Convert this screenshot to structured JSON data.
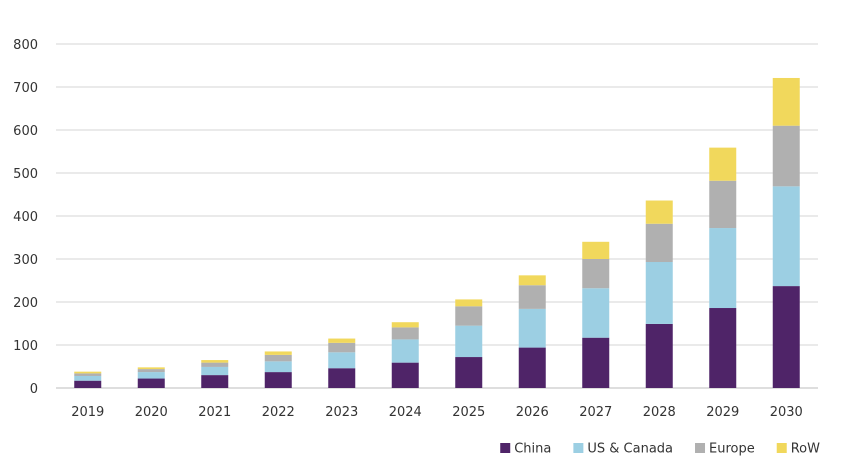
{
  "chart_data": {
    "type": "bar",
    "stacked": true,
    "title": "",
    "xlabel": "",
    "ylabel": "",
    "ylim": [
      0,
      800
    ],
    "yticks": [
      0,
      100,
      200,
      300,
      400,
      500,
      600,
      700,
      800
    ],
    "grid": "horizontal",
    "legend_position": "bottom-right",
    "categories": [
      "2019",
      "2020",
      "2021",
      "2022",
      "2023",
      "2024",
      "2025",
      "2026",
      "2027",
      "2028",
      "2029",
      "2030"
    ],
    "series": [
      {
        "name": "China",
        "color": "#4f2468",
        "values": [
          17,
          22,
          30,
          37,
          46,
          59,
          72,
          94,
          117,
          149,
          186,
          237
        ]
      },
      {
        "name": "US & Canada",
        "color": "#9ccfe3",
        "values": [
          11,
          15,
          19,
          25,
          37,
          54,
          73,
          90,
          115,
          144,
          186,
          232
        ]
      },
      {
        "name": "Europe",
        "color": "#b0b0b0",
        "values": [
          6,
          7,
          10,
          15,
          22,
          28,
          45,
          55,
          68,
          89,
          110,
          141
        ]
      },
      {
        "name": "RoW",
        "color": "#f1d85c",
        "values": [
          4,
          4,
          6,
          8,
          10,
          12,
          16,
          23,
          40,
          54,
          77,
          111
        ]
      }
    ]
  }
}
